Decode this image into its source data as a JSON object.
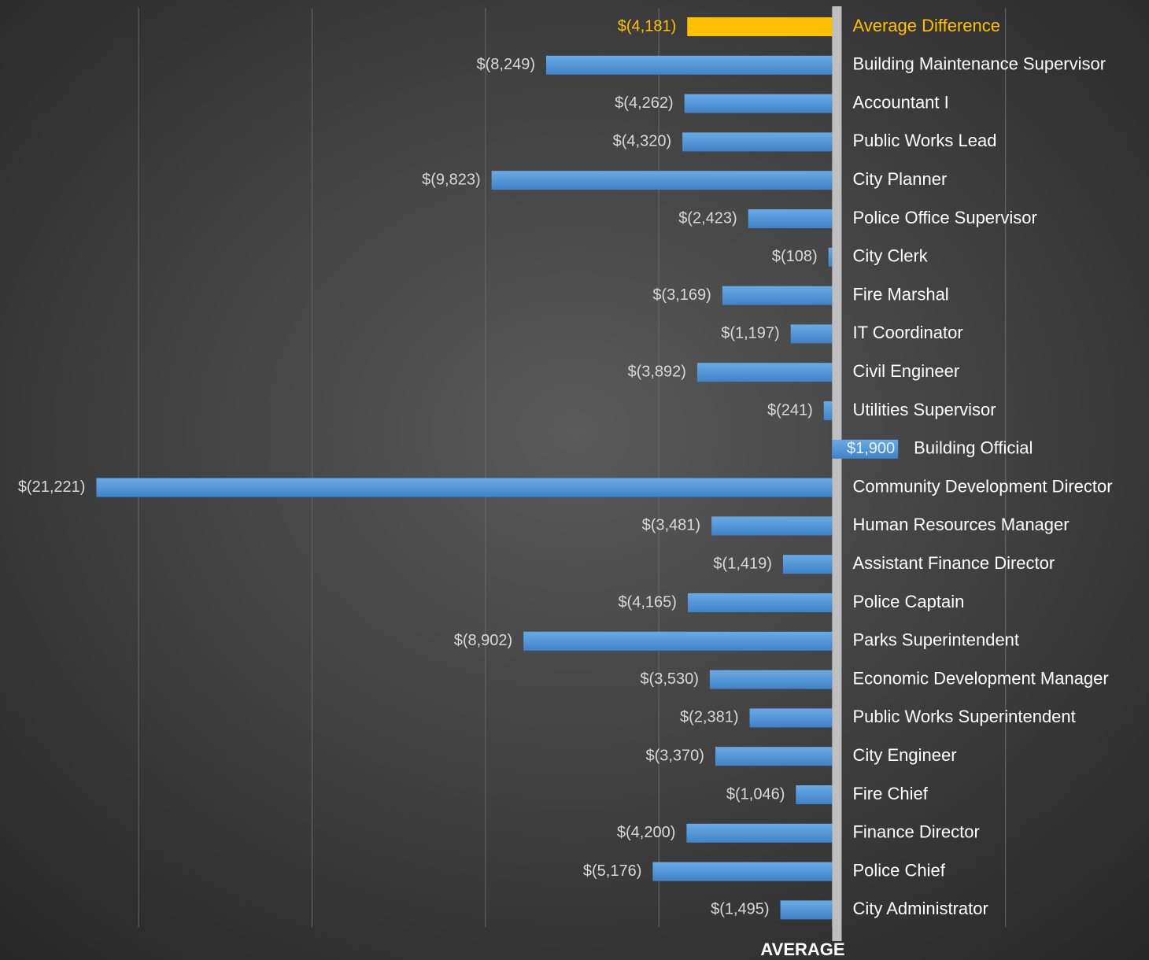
{
  "chart_data": {
    "type": "bar",
    "orientation": "horizontal",
    "x_label": "AVERAGE",
    "categories": [
      "Average Difference",
      "Building Maintenance Supervisor",
      "Accountant I",
      "Public Works Lead",
      "City Planner",
      "Police Office Supervisor",
      "City Clerk",
      "Fire Marshal",
      "IT Coordinator",
      "Civil Engineer",
      "Utilities Supervisor",
      "Building Official",
      "Community Development Director",
      "Human Resources Manager",
      "Assistant Finance Director",
      "Police Captain",
      "Parks Superintendent",
      "Economic Development Manager",
      "Public Works Superintendent",
      "City Engineer",
      "Fire Chief",
      "Finance Director",
      "Police Chief",
      "City Administrator"
    ],
    "values": [
      -4181,
      -8249,
      -4262,
      -4320,
      -9823,
      -2423,
      -108,
      -3169,
      -1197,
      -3892,
      -241,
      1900,
      -21221,
      -3481,
      -1419,
      -4165,
      -8902,
      -3530,
      -2381,
      -3370,
      -1046,
      -4200,
      -5176,
      -1495
    ],
    "value_labels": [
      "$(4,181)",
      "$(8,249)",
      "$(4,262)",
      "$(4,320)",
      "$(9,823)",
      "$(2,423)",
      "$(108)",
      "$(3,169)",
      "$(1,197)",
      "$(3,892)",
      "$(241)",
      "$1,900",
      "$(21,221)",
      "$(3,481)",
      "$(1,419)",
      "$(4,165)",
      "$(8,902)",
      "$(3,530)",
      "$(2,381)",
      "$(3,370)",
      "$(1,046)",
      "$(4,200)",
      "$(5,176)",
      "$(1,495)"
    ],
    "colors": [
      "#ffc000",
      "#5b9bd5",
      "#5b9bd5",
      "#5b9bd5",
      "#5b9bd5",
      "#5b9bd5",
      "#5b9bd5",
      "#5b9bd5",
      "#5b9bd5",
      "#5b9bd5",
      "#5b9bd5",
      "#5b9bd5",
      "#5b9bd5",
      "#5b9bd5",
      "#5b9bd5",
      "#5b9bd5",
      "#5b9bd5",
      "#5b9bd5",
      "#5b9bd5",
      "#5b9bd5",
      "#5b9bd5",
      "#5b9bd5",
      "#5b9bd5",
      "#5b9bd5"
    ],
    "xlim": [
      -24000,
      9000
    ],
    "xticks": [
      -20000,
      -15000,
      -10000,
      -5000,
      0,
      5000
    ],
    "grid": true
  }
}
